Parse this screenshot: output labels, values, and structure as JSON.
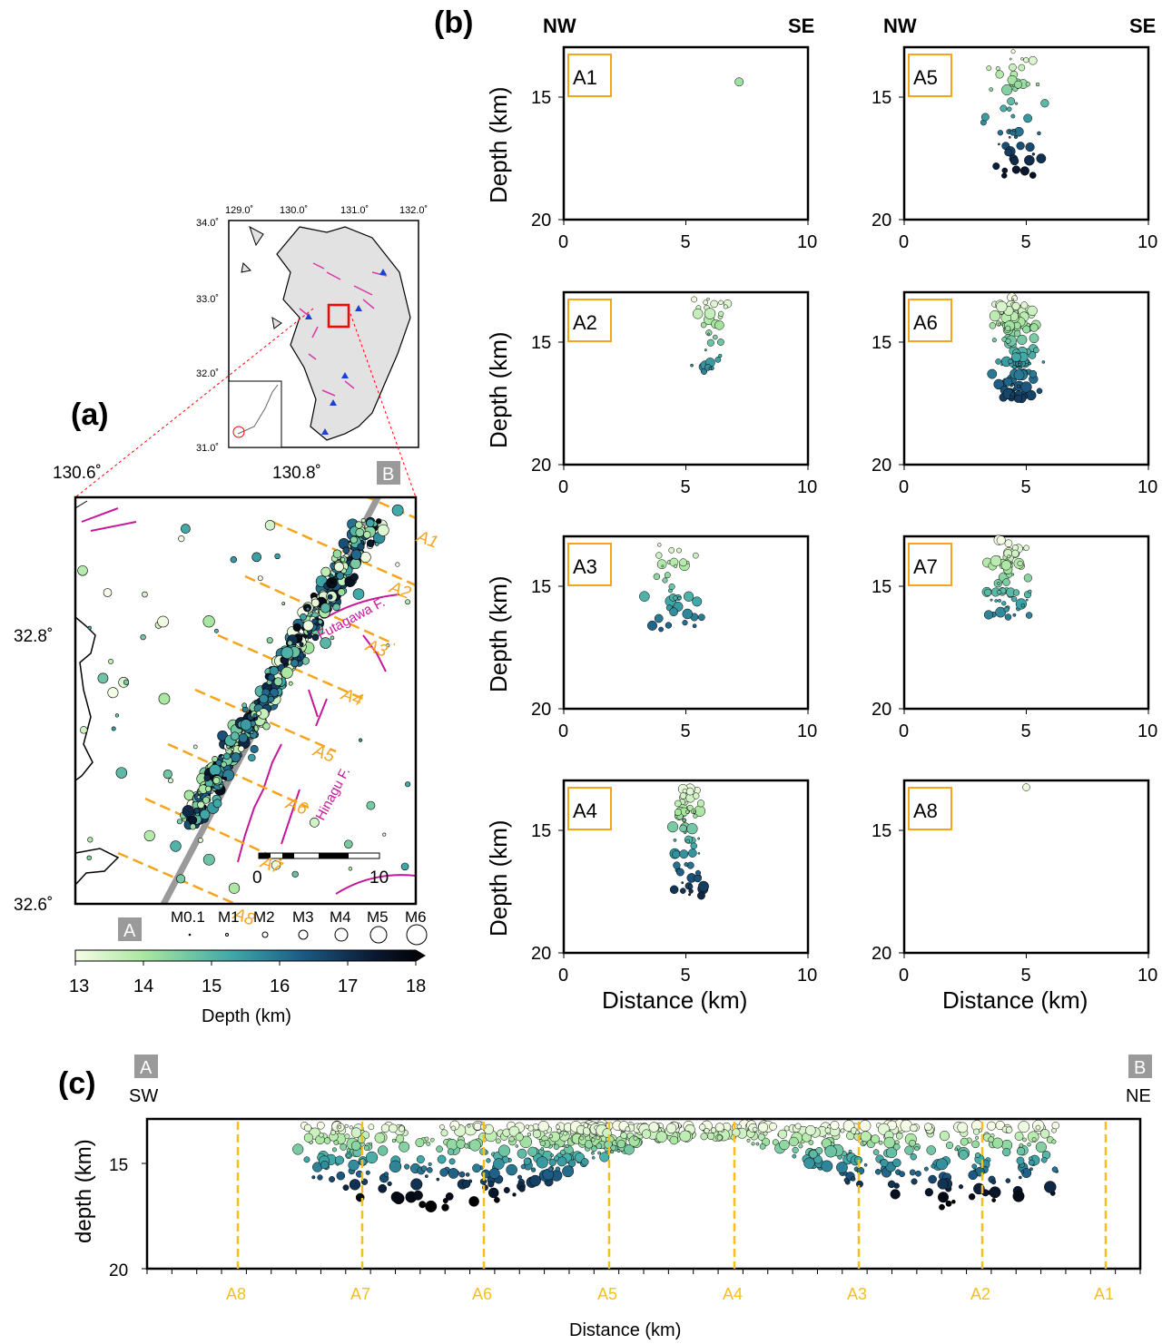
{
  "panel_labels": {
    "a": "(a)",
    "b": "(b)",
    "c": "(c)"
  },
  "inset_map": {
    "lon_ticks": [
      "129.0˚",
      "130.0˚",
      "131.0˚",
      "132.0˚"
    ],
    "lat_ticks": [
      "34.0˚",
      "33.0˚",
      "32.0˚",
      "31.0˚"
    ]
  },
  "main_map": {
    "lon_ticks": [
      "130.6˚",
      "130.8˚"
    ],
    "lat_ticks": [
      "32.8˚",
      "32.6˚"
    ],
    "fault_labels": [
      "Futagawa F.",
      "Hinagu F."
    ],
    "profile_ends": {
      "start": "A",
      "end": "B"
    },
    "line_labels": [
      "A1",
      "A2",
      "A3",
      "A4",
      "A5",
      "A6",
      "A7",
      "A8"
    ],
    "scalebar_labels": [
      "0",
      "10"
    ],
    "magnitude_legend": [
      "M0.1",
      "M1",
      "M2",
      "M3",
      "M4",
      "M5",
      "M6"
    ],
    "colorbar": {
      "ticks": [
        "13",
        "14",
        "15",
        "16",
        "17",
        "18"
      ],
      "label": "Depth (km)",
      "colors": [
        "#f7fde8",
        "#a8e6a0",
        "#3fa7a8",
        "#1d5a84",
        "#0b1a33",
        "#000000"
      ]
    }
  },
  "cross_sections": {
    "nw_label": "NW",
    "se_label": "SE",
    "ylabel": "Depth (km)",
    "xlabel": "Distance (km)",
    "yticks": [
      "15",
      "20"
    ],
    "xticks": [
      "0",
      "5",
      "10"
    ],
    "panels": [
      "A1",
      "A2",
      "A3",
      "A4",
      "A5",
      "A6",
      "A7",
      "A8"
    ]
  },
  "long_section": {
    "sw_label": "SW",
    "ne_label": "NE",
    "start": "A",
    "end": "B",
    "ylabel": "depth (km)",
    "xlabel": "Distance (km)",
    "yticks": [
      "15",
      "20"
    ],
    "line_labels": [
      "A8",
      "A7",
      "A6",
      "A5",
      "A4",
      "A3",
      "A2",
      "A1"
    ]
  }
}
